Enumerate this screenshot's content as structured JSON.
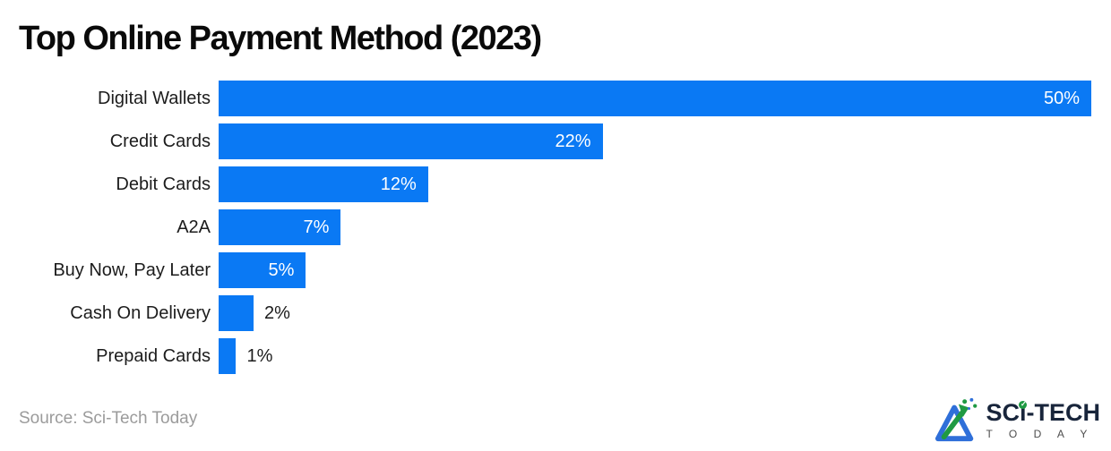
{
  "title": "Top Online Payment Method (2023)",
  "source_note": "Source: Sci-Tech Today",
  "colors": {
    "bar": "#0a79f4",
    "title_text": "#0a0a0a",
    "category_text": "#1c1c1c",
    "value_inside_text": "#ffffff",
    "value_outside_text": "#1c1c1c",
    "source_text": "#9b9b9b",
    "logo_navy": "#18253b",
    "logo_green": "#1f9a43",
    "logo_blue": "#2f6fd9",
    "logo_gray": "#4d4d4d",
    "background": "#ffffff"
  },
  "logo": {
    "text": "SCi-TECH",
    "text_pre": "SC",
    "text_i": "ı",
    "text_post": "-TECH",
    "subtext": "T O D A Y"
  },
  "chart_data": {
    "type": "bar",
    "orientation": "horizontal",
    "title": "Top Online Payment Method (2023)",
    "categories": [
      "Digital Wallets",
      "Credit Cards",
      "Debit Cards",
      "A2A",
      "Buy Now, Pay Later",
      "Cash On Delivery",
      "Prepaid Cards"
    ],
    "values": [
      50,
      22,
      12,
      7,
      5,
      2,
      1
    ],
    "value_labels": [
      "50%",
      "22%",
      "12%",
      "7%",
      "5%",
      "2%",
      "1%"
    ],
    "xlabel": "",
    "ylabel": "",
    "xlim": [
      0,
      50
    ],
    "grid": false,
    "legend": false,
    "bar_color": "#0a79f4",
    "source": "Source: Sci-Tech Today"
  }
}
